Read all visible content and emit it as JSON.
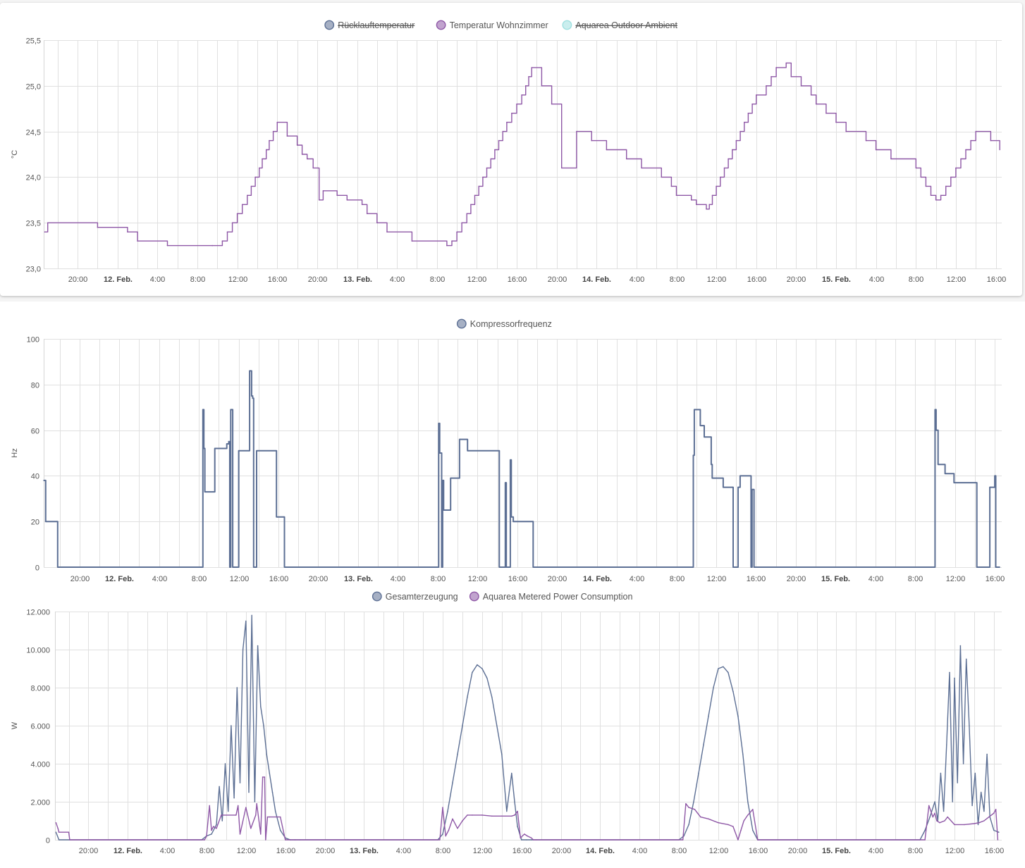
{
  "xaxis": {
    "ticks": [
      {
        "h": 20,
        "label": "20:00",
        "bold": false
      },
      {
        "h": 24,
        "label": "12. Feb.",
        "bold": true
      },
      {
        "h": 28,
        "label": "4:00",
        "bold": false
      },
      {
        "h": 32,
        "label": "8:00",
        "bold": false
      },
      {
        "h": 36,
        "label": "12:00",
        "bold": false
      },
      {
        "h": 40,
        "label": "16:00",
        "bold": false
      },
      {
        "h": 44,
        "label": "20:00",
        "bold": false
      },
      {
        "h": 48,
        "label": "13. Feb.",
        "bold": true
      },
      {
        "h": 52,
        "label": "4:00",
        "bold": false
      },
      {
        "h": 56,
        "label": "8:00",
        "bold": false
      },
      {
        "h": 60,
        "label": "12:00",
        "bold": false
      },
      {
        "h": 64,
        "label": "16:00",
        "bold": false
      },
      {
        "h": 68,
        "label": "20:00",
        "bold": false
      },
      {
        "h": 72,
        "label": "14. Feb.",
        "bold": true
      },
      {
        "h": 76,
        "label": "4:00",
        "bold": false
      },
      {
        "h": 80,
        "label": "8:00",
        "bold": false
      },
      {
        "h": 84,
        "label": "12:00",
        "bold": false
      },
      {
        "h": 88,
        "label": "16:00",
        "bold": false
      },
      {
        "h": 92,
        "label": "20:00",
        "bold": false
      },
      {
        "h": 96,
        "label": "15. Feb.",
        "bold": true
      },
      {
        "h": 100,
        "label": "4:00",
        "bold": false
      },
      {
        "h": 104,
        "label": "8:00",
        "bold": false
      },
      {
        "h": 108,
        "label": "12:00",
        "bold": false
      },
      {
        "h": 112,
        "label": "16:00",
        "bold": false
      }
    ]
  },
  "chart_data": [
    {
      "type": "line",
      "ylabel": "°C",
      "ylim": [
        23.0,
        25.5
      ],
      "xlim": [
        16.6,
        112.6
      ],
      "yticks": [
        {
          "v": 23.0,
          "label": "23,0"
        },
        {
          "v": 23.5,
          "label": "23,5"
        },
        {
          "v": 24.0,
          "label": "24,0"
        },
        {
          "v": 24.5,
          "label": "24,5"
        },
        {
          "v": 25.0,
          "label": "25,0"
        },
        {
          "v": 25.5,
          "label": "25,5"
        }
      ],
      "grid": true,
      "legend_position": "top",
      "series": [
        {
          "name": "Rücklauftemperatur",
          "color": "#5c6f94",
          "hidden": true,
          "x": [],
          "y": []
        },
        {
          "name": "Temperatur Wohnzimmer",
          "color": "#8e57a6",
          "hidden": false,
          "x": [
            16.7,
            17.0,
            22.0,
            25.0,
            26.0,
            29.0,
            33.5,
            34.5,
            35.0,
            35.5,
            36.0,
            36.5,
            37.0,
            37.4,
            37.8,
            38.2,
            38.5,
            38.9,
            39.2,
            39.6,
            40.0,
            41.0,
            42.0,
            42.5,
            43.0,
            43.6,
            44.2,
            44.6,
            46.0,
            47.0,
            48.5,
            49.0,
            50.0,
            51.0,
            53.5,
            57.0,
            57.5,
            58.0,
            58.5,
            59.0,
            59.4,
            59.8,
            60.2,
            60.6,
            61.0,
            61.4,
            61.8,
            62.2,
            62.6,
            63.0,
            63.5,
            64.0,
            64.5,
            64.9,
            65.2,
            65.5,
            66.5,
            67.5,
            68.5,
            70.0,
            71.5,
            73.0,
            75.0,
            76.5,
            78.5,
            79.5,
            80.0,
            81.5,
            82.0,
            83.0,
            83.3,
            83.6,
            84.0,
            84.4,
            84.8,
            85.2,
            85.6,
            86.0,
            86.4,
            86.8,
            87.2,
            87.6,
            88.0,
            89.0,
            89.5,
            90.0,
            91.0,
            91.5,
            92.5,
            93.5,
            94.0,
            95.0,
            96.0,
            97.0,
            99.0,
            100.0,
            101.5,
            104.0,
            104.5,
            105.0,
            105.5,
            106.0,
            106.5,
            107.0,
            107.5,
            108.0,
            108.5,
            109.0,
            109.5,
            110.0,
            111.5,
            112.4
          ],
          "y": [
            23.4,
            23.5,
            23.45,
            23.4,
            23.3,
            23.25,
            23.25,
            23.3,
            23.4,
            23.5,
            23.6,
            23.7,
            23.8,
            23.9,
            24.0,
            24.1,
            24.2,
            24.3,
            24.4,
            24.5,
            24.6,
            24.45,
            24.35,
            24.25,
            24.2,
            24.1,
            23.75,
            23.85,
            23.8,
            23.75,
            23.7,
            23.6,
            23.5,
            23.4,
            23.3,
            23.25,
            23.3,
            23.4,
            23.5,
            23.6,
            23.7,
            23.8,
            23.9,
            24.0,
            24.1,
            24.2,
            24.3,
            24.4,
            24.5,
            24.6,
            24.7,
            24.8,
            24.9,
            25.0,
            25.1,
            25.2,
            25.0,
            24.8,
            24.1,
            24.5,
            24.4,
            24.3,
            24.2,
            24.1,
            24.0,
            23.9,
            23.8,
            23.75,
            23.7,
            23.65,
            23.7,
            23.8,
            23.9,
            24.0,
            24.1,
            24.2,
            24.3,
            24.4,
            24.5,
            24.6,
            24.7,
            24.8,
            24.9,
            25.0,
            25.1,
            25.2,
            25.25,
            25.1,
            25.0,
            24.9,
            24.8,
            24.7,
            24.6,
            24.5,
            24.4,
            24.3,
            24.2,
            24.1,
            24.0,
            23.9,
            23.8,
            23.75,
            23.8,
            23.9,
            24.0,
            24.1,
            24.2,
            24.3,
            24.4,
            24.5,
            24.4,
            24.3
          ]
        },
        {
          "name": "Aquarea Outdoor Ambient",
          "color": "#9ee0e0",
          "hidden": true,
          "x": [],
          "y": []
        }
      ]
    },
    {
      "type": "line",
      "ylabel": "Hz",
      "ylim": [
        0,
        100
      ],
      "xlim": [
        16.4,
        112.7
      ],
      "yticks": [
        {
          "v": 0,
          "label": "0"
        },
        {
          "v": 20,
          "label": "20"
        },
        {
          "v": 40,
          "label": "40"
        },
        {
          "v": 60,
          "label": "60"
        },
        {
          "v": 80,
          "label": "80"
        },
        {
          "v": 100,
          "label": "100"
        }
      ],
      "grid": true,
      "legend_position": "top",
      "series": [
        {
          "name": "Kompressorfrequenz",
          "color": "#5c6f94",
          "hidden": false,
          "x": [
            16.4,
            16.5,
            16.6,
            17.7,
            17.8,
            32.3,
            32.4,
            32.5,
            32.6,
            33.4,
            33.6,
            34.4,
            34.8,
            35.0,
            35.1,
            35.2,
            35.3,
            35.4,
            36.0,
            37.0,
            37.1,
            37.3,
            37.4,
            37.5,
            37.8,
            37.9,
            38.0,
            38.1,
            39.7,
            39.8,
            40.5,
            40.6,
            56.0,
            56.1,
            56.2,
            56.4,
            56.5,
            56.6,
            56.8,
            57.3,
            57.4,
            58.2,
            58.3,
            59.0,
            59.1,
            62.1,
            62.2,
            62.8,
            62.9,
            63.3,
            63.4,
            63.6,
            63.7,
            63.8,
            65.5,
            65.6,
            81.6,
            81.7,
            81.8,
            82.3,
            82.4,
            82.8,
            82.9,
            83.5,
            83.6,
            84.6,
            84.7,
            85.6,
            85.7,
            86.2,
            86.3,
            86.4,
            87.5,
            87.6,
            87.8,
            87.9,
            88.0,
            105.9,
            106.0,
            106.1,
            106.3,
            106.4,
            107.0,
            107.1,
            107.9,
            108.0,
            110.1,
            110.2,
            111.5,
            111.6,
            112.0,
            112.1,
            112.5
          ],
          "y": [
            38,
            38,
            20,
            20,
            0,
            0,
            69,
            52,
            33,
            33,
            52,
            52,
            54,
            55,
            0,
            69,
            69,
            0,
            51,
            51,
            86,
            75,
            74,
            0,
            51,
            51,
            51,
            51,
            51,
            22,
            22,
            0,
            0,
            63,
            50,
            0,
            38,
            25,
            25,
            39,
            39,
            56,
            56,
            51,
            51,
            51,
            0,
            37,
            0,
            47,
            22,
            20,
            20,
            20,
            20,
            0,
            0,
            49,
            69,
            69,
            62,
            57,
            57,
            45,
            39,
            39,
            35,
            35,
            0,
            35,
            35,
            40,
            0,
            34,
            0,
            0,
            0,
            0,
            69,
            60,
            45,
            45,
            41,
            41,
            37,
            37,
            37,
            0,
            35,
            35,
            40,
            0,
            0
          ]
        }
      ]
    },
    {
      "type": "line",
      "ylabel": "W",
      "ylim": [
        0,
        12000
      ],
      "xlim": [
        16.6,
        112.8
      ],
      "yticks": [
        {
          "v": 0,
          "label": "0"
        },
        {
          "v": 2000,
          "label": "2.000"
        },
        {
          "v": 4000,
          "label": "4.000"
        },
        {
          "v": 6000,
          "label": "6.000"
        },
        {
          "v": 8000,
          "label": "8.000"
        },
        {
          "v": 10000,
          "label": "10.000"
        },
        {
          "v": 12000,
          "label": "12.000"
        }
      ],
      "grid": true,
      "legend_position": "top",
      "series": [
        {
          "name": "Gesamterzeugung",
          "color": "#5c6f94",
          "hidden": false,
          "x": [
            16.7,
            17.0,
            31.5,
            32.0,
            32.5,
            33.0,
            33.3,
            33.6,
            33.9,
            34.2,
            34.5,
            34.8,
            35.1,
            35.4,
            35.7,
            36.0,
            36.3,
            36.6,
            36.9,
            37.2,
            37.5,
            37.8,
            38.1,
            38.4,
            38.7,
            39.0,
            39.5,
            40.0,
            40.5,
            41.0,
            41.5,
            55.5,
            56.0,
            56.5,
            57.0,
            57.5,
            58.0,
            58.5,
            59.0,
            59.5,
            60.0,
            60.5,
            61.0,
            61.5,
            62.0,
            62.5,
            63.0,
            63.3,
            63.6,
            64.0,
            64.5,
            65.0,
            80.0,
            80.5,
            81.0,
            81.5,
            82.0,
            82.5,
            83.0,
            83.5,
            84.0,
            84.5,
            85.0,
            85.5,
            86.0,
            86.5,
            87.0,
            87.5,
            88.0,
            104.5,
            105.0,
            105.5,
            106.0,
            106.3,
            106.6,
            106.9,
            107.2,
            107.5,
            107.8,
            108.0,
            108.3,
            108.6,
            108.9,
            109.2,
            109.5,
            109.8,
            110.1,
            110.4,
            110.7,
            111.0,
            111.3,
            111.6,
            112.0,
            112.5
          ],
          "y": [
            400,
            0,
            0,
            200,
            300,
            800,
            2800,
            1000,
            4000,
            1500,
            6000,
            2200,
            8000,
            3000,
            10000,
            11500,
            2500,
            11800,
            2000,
            10200,
            7000,
            6000,
            4500,
            3500,
            2500,
            1500,
            500,
            100,
            0,
            0,
            0,
            0,
            300,
            1500,
            3000,
            4500,
            6000,
            7500,
            8800,
            9200,
            9000,
            8500,
            7500,
            6000,
            4500,
            1500,
            3500,
            2000,
            700,
            0,
            0,
            0,
            0,
            200,
            800,
            2000,
            3500,
            5000,
            6500,
            8000,
            9000,
            9100,
            8800,
            7800,
            6500,
            4500,
            2000,
            500,
            0,
            0,
            500,
            1200,
            2000,
            1000,
            3500,
            1500,
            5000,
            8800,
            2000,
            8500,
            3000,
            10200,
            4000,
            9500,
            6000,
            1800,
            3500,
            800,
            2500,
            1500,
            4500,
            1200,
            500,
            400
          ]
        },
        {
          "name": "Aquarea Metered Power Consumption",
          "color": "#8e57a6",
          "hidden": false,
          "x": [
            16.7,
            16.9,
            17.0,
            18.0,
            18.1,
            31.8,
            32.0,
            32.3,
            32.5,
            32.7,
            33.0,
            33.5,
            35.0,
            35.2,
            35.4,
            36.0,
            36.5,
            37.0,
            37.1,
            37.5,
            37.7,
            37.9,
            38.0,
            38.2,
            38.4,
            39.5,
            40.0,
            40.5,
            41.0,
            55.7,
            56.0,
            56.3,
            56.6,
            57.0,
            57.5,
            58.0,
            58.5,
            59.0,
            60.0,
            61.0,
            62.0,
            63.0,
            63.3,
            63.6,
            63.9,
            64.3,
            64.6,
            65.0,
            65.2,
            65.5,
            80.4,
            80.7,
            81.0,
            81.6,
            81.9,
            82.2,
            83.0,
            84.0,
            85.0,
            85.5,
            86.0,
            86.3,
            86.6,
            87.0,
            87.5,
            88.0,
            88.1,
            105.0,
            105.4,
            105.8,
            106.0,
            106.2,
            106.5,
            107.0,
            107.3,
            108.0,
            109.0,
            110.0,
            110.5,
            111.0,
            111.5,
            112.0,
            112.2,
            112.4
          ],
          "y": [
            900,
            600,
            400,
            400,
            0,
            0,
            200,
            1800,
            500,
            700,
            600,
            1300,
            1300,
            1800,
            300,
            1700,
            600,
            1300,
            1900,
            300,
            3300,
            3300,
            0,
            1200,
            1200,
            1200,
            0,
            0,
            0,
            0,
            1700,
            200,
            500,
            1100,
            600,
            1000,
            1300,
            1300,
            1300,
            1250,
            1250,
            1250,
            1300,
            1500,
            100,
            300,
            200,
            100,
            0,
            0,
            0,
            1900,
            1700,
            1600,
            1400,
            1200,
            1100,
            900,
            800,
            700,
            0,
            500,
            1000,
            1300,
            1600,
            0,
            0,
            0,
            1800,
            1200,
            1400,
            1000,
            900,
            1000,
            1200,
            800,
            800,
            850,
            900,
            1000,
            1200,
            1400,
            1600,
            0
          ]
        }
      ]
    }
  ]
}
